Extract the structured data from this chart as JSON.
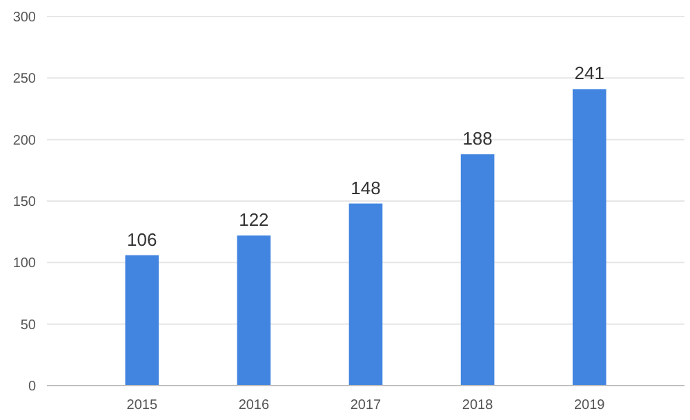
{
  "chart_data": {
    "type": "bar",
    "categories": [
      "2015",
      "2016",
      "2017",
      "2018",
      "2019"
    ],
    "values": [
      106,
      122,
      148,
      188,
      241
    ],
    "color": "#4285e0",
    "ylim": [
      0,
      300
    ],
    "yticks": [
      0,
      50,
      100,
      150,
      200,
      250,
      300
    ],
    "grid": "y",
    "data_labels": true
  }
}
